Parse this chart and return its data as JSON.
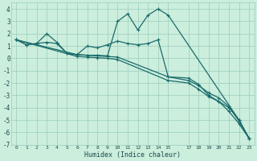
{
  "xlabel": "Humidex (Indice chaleur)",
  "bg_color": "#cceedd",
  "grid_color": "#99ccbb",
  "line_color": "#1a6b6b",
  "xlim": [
    -0.5,
    23.5
  ],
  "ylim": [
    -7,
    4.5
  ],
  "yticks": [
    -7,
    -6,
    -5,
    -4,
    -3,
    -2,
    -1,
    0,
    1,
    2,
    3,
    4
  ],
  "xtick_positions": [
    0,
    1,
    2,
    3,
    4,
    5,
    6,
    7,
    8,
    9,
    10,
    11,
    12,
    13,
    14,
    15,
    17,
    18,
    19,
    20,
    21,
    22,
    23
  ],
  "xtick_labels": [
    "0",
    "1",
    "2",
    "3",
    "4",
    "5",
    "6",
    "7",
    "8",
    "9",
    "10",
    "11",
    "12",
    "13",
    "14",
    "15",
    "17",
    "18",
    "19",
    "20",
    "21",
    "22",
    "23"
  ],
  "line1_x": [
    0,
    1,
    2,
    3,
    4,
    5,
    6,
    7,
    8,
    9,
    10,
    11,
    12,
    13,
    14,
    15,
    22,
    23
  ],
  "line1_y": [
    1.5,
    1.1,
    1.2,
    1.3,
    1.2,
    0.4,
    0.3,
    0.25,
    0.25,
    0.2,
    3.0,
    3.6,
    2.3,
    3.5,
    4.0,
    3.5,
    -5.0,
    -6.5
  ],
  "line2_x": [
    0,
    1,
    2,
    3,
    4,
    5,
    6,
    7,
    8,
    9,
    10,
    11,
    12,
    13,
    14,
    15,
    17,
    18,
    19,
    20,
    21,
    22,
    23
  ],
  "line2_y": [
    1.5,
    1.1,
    1.2,
    2.0,
    1.3,
    0.4,
    0.3,
    1.0,
    0.85,
    1.1,
    1.4,
    1.2,
    1.1,
    1.2,
    1.5,
    -1.5,
    -1.6,
    -2.1,
    -3.0,
    -3.5,
    -4.0,
    -5.0,
    -6.5
  ],
  "line3_x": [
    0,
    6,
    7,
    8,
    9,
    10,
    15,
    17,
    18,
    19,
    20,
    21,
    22,
    23
  ],
  "line3_y": [
    1.5,
    0.3,
    0.25,
    0.2,
    0.15,
    0.1,
    -1.5,
    -1.8,
    -2.2,
    -2.8,
    -3.2,
    -3.9,
    -5.1,
    -6.5
  ],
  "line4_x": [
    0,
    6,
    7,
    8,
    9,
    10,
    15,
    17,
    18,
    19,
    20,
    21,
    22,
    23
  ],
  "line4_y": [
    1.5,
    0.15,
    0.1,
    0.05,
    0.0,
    -0.1,
    -1.8,
    -2.0,
    -2.5,
    -3.1,
    -3.5,
    -4.3,
    -5.3,
    -6.5
  ],
  "linewidth": 0.9,
  "markersize": 3.5
}
